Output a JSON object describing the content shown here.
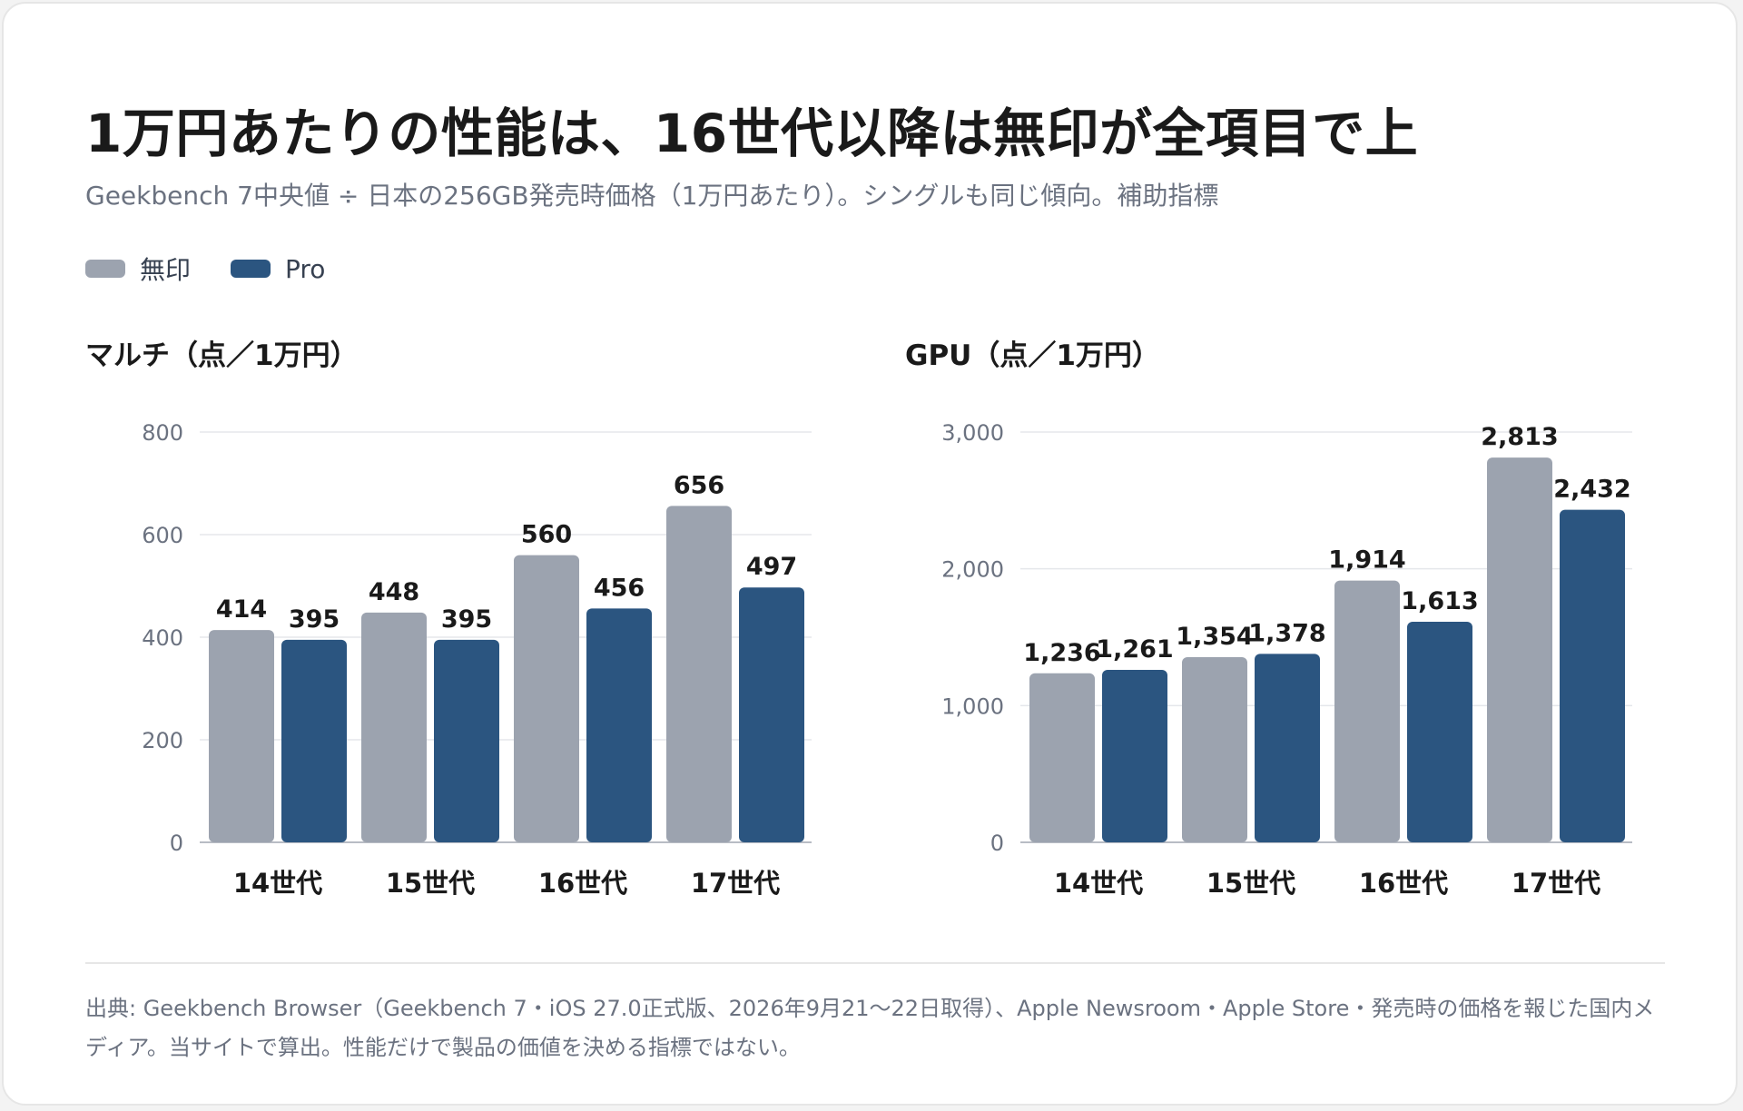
{
  "title": "1万円あたりの性能は、16世代以降は無印が全項目で上",
  "subtitle": "Geekbench 7中央値 ÷ 日本の256GB発売時価格（1万円あたり）。シングルも同じ傾向。補助指標",
  "legend": [
    {
      "label": "無印",
      "color": "#9ca3af"
    },
    {
      "label": "Pro",
      "color": "#2b5580"
    }
  ],
  "chart_data": [
    {
      "type": "bar",
      "title": "マルチ（点／1万円）",
      "categories": [
        "14世代",
        "15世代",
        "16世代",
        "17世代"
      ],
      "series": [
        {
          "name": "無印",
          "values": [
            414,
            448,
            560,
            656
          ],
          "labels": [
            "414",
            "448",
            "560",
            "656"
          ],
          "color": "#9ca3af"
        },
        {
          "name": "Pro",
          "values": [
            395,
            395,
            456,
            497
          ],
          "labels": [
            "395",
            "395",
            "456",
            "497"
          ],
          "color": "#2b5580"
        }
      ],
      "ylim": [
        0,
        800
      ],
      "yticks": [
        0,
        200,
        400,
        600,
        800
      ],
      "ytick_labels": [
        "0",
        "200",
        "400",
        "600",
        "800"
      ],
      "grid": true
    },
    {
      "type": "bar",
      "title": "GPU（点／1万円）",
      "categories": [
        "14世代",
        "15世代",
        "16世代",
        "17世代"
      ],
      "series": [
        {
          "name": "無印",
          "values": [
            1236,
            1354,
            1914,
            2813
          ],
          "labels": [
            "1,236",
            "1,354",
            "1,914",
            "2,813"
          ],
          "color": "#9ca3af"
        },
        {
          "name": "Pro",
          "values": [
            1261,
            1378,
            1613,
            2432
          ],
          "labels": [
            "1,261",
            "1,378",
            "1,613",
            "2,432"
          ],
          "color": "#2b5580"
        }
      ],
      "ylim": [
        0,
        3000
      ],
      "yticks": [
        0,
        1000,
        2000,
        3000
      ],
      "ytick_labels": [
        "0",
        "1,000",
        "2,000",
        "3,000"
      ],
      "grid": true
    }
  ],
  "footer": "出典: Geekbench Browser（Geekbench 7・iOS 27.0正式版、2026年9月21〜22日取得）、Apple Newsroom・Apple Store・発売時の価格を報じた国内メディア。当サイトで算出。性能だけで製品の価値を決める指標ではない。"
}
